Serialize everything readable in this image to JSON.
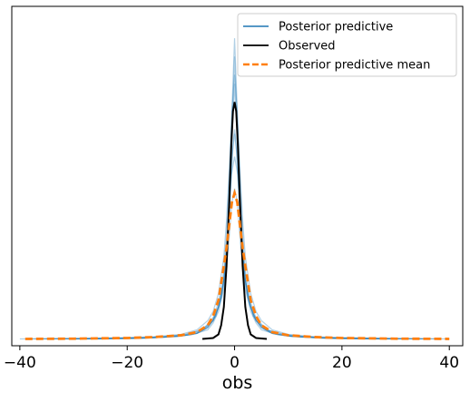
{
  "chart_data": {
    "type": "line",
    "title": "",
    "xlabel": "obs",
    "ylabel": "",
    "xlim": [
      -41.5,
      42.5
    ],
    "ylim": [
      -0.015,
      0.73
    ],
    "xticks": [
      -40,
      -20,
      0,
      20,
      40
    ],
    "xtick_labels": [
      "−40",
      "−20",
      "0",
      "20",
      "40"
    ],
    "y_axis_visible": false,
    "grid": false,
    "legend_position": "top-right",
    "colors": {
      "posterior_predictive": "#1f77b4",
      "observed": "#000000",
      "posterior_predictive_mean": "#ff7f0e"
    },
    "series": [
      {
        "name": "Posterior predictive",
        "kind": "ensemble_of_curves",
        "style": "solid",
        "curves": [
          {
            "x": [
              -40,
              -30,
              -20,
              -15,
              -10,
              -7,
              -5,
              -4,
              -3,
              -2,
              -1.5,
              -1,
              -0.5,
              0,
              0.5,
              1,
              1.5,
              2,
              3,
              4,
              5,
              7,
              10,
              15,
              20,
              30,
              40
            ],
            "y": [
              0,
              0.001,
              0.003,
              0.005,
              0.01,
              0.02,
              0.04,
              0.06,
              0.1,
              0.18,
              0.26,
              0.37,
              0.48,
              0.52,
              0.48,
              0.37,
              0.26,
              0.18,
              0.1,
              0.06,
              0.04,
              0.02,
              0.01,
              0.005,
              0.003,
              0.001,
              0
            ]
          },
          {
            "x": [
              -35,
              -25,
              -15,
              -10,
              -7,
              -5,
              -4,
              -3,
              -2,
              -1.5,
              -1,
              -0.5,
              0,
              0.5,
              1,
              1.5,
              2,
              3,
              4,
              5,
              7,
              10,
              15,
              25,
              35
            ],
            "y": [
              0,
              0.001,
              0.003,
              0.006,
              0.012,
              0.025,
              0.04,
              0.07,
              0.13,
              0.2,
              0.31,
              0.5,
              0.66,
              0.5,
              0.31,
              0.2,
              0.13,
              0.07,
              0.04,
              0.025,
              0.012,
              0.006,
              0.003,
              0.001,
              0
            ]
          },
          {
            "x": [
              -30,
              -20,
              -12,
              -8,
              -5,
              -4,
              -3,
              -2,
              -1.5,
              -1,
              -0.5,
              0,
              0.5,
              1,
              1.5,
              2,
              3,
              4,
              5,
              8,
              12,
              20,
              30
            ],
            "y": [
              0,
              0.001,
              0.004,
              0.009,
              0.02,
              0.035,
              0.06,
              0.11,
              0.17,
              0.27,
              0.4,
              0.45,
              0.4,
              0.27,
              0.17,
              0.11,
              0.06,
              0.035,
              0.02,
              0.009,
              0.004,
              0.001,
              0
            ]
          },
          {
            "x": [
              -32,
              -22,
              -14,
              -9,
              -6,
              -4,
              -3,
              -2,
              -1.5,
              -1,
              -0.5,
              0,
              0.5,
              1,
              1.5,
              2,
              3,
              4,
              6,
              9,
              14,
              22,
              32
            ],
            "y": [
              0,
              0.001,
              0.004,
              0.01,
              0.02,
              0.045,
              0.08,
              0.15,
              0.23,
              0.35,
              0.5,
              0.58,
              0.5,
              0.35,
              0.23,
              0.15,
              0.08,
              0.045,
              0.02,
              0.01,
              0.004,
              0.001,
              0
            ]
          },
          {
            "x": [
              -28,
              -18,
              -11,
              -7,
              -5,
              -3.5,
              -2.5,
              -1.8,
              -1.2,
              -0.6,
              0,
              0.6,
              1.2,
              1.8,
              2.5,
              3.5,
              5,
              7,
              11,
              18,
              28
            ],
            "y": [
              0,
              0.001,
              0.005,
              0.012,
              0.025,
              0.05,
              0.09,
              0.15,
              0.24,
              0.36,
              0.4,
              0.36,
              0.24,
              0.15,
              0.09,
              0.05,
              0.025,
              0.012,
              0.005,
              0.001,
              0
            ]
          },
          {
            "x": [
              -36,
              -24,
              -16,
              -10,
              -6,
              -4,
              -3,
              -2,
              -1.4,
              -0.8,
              -0.3,
              0,
              0.3,
              0.8,
              1.4,
              2,
              3,
              4,
              6,
              10,
              16,
              24,
              36
            ],
            "y": [
              0,
              0.001,
              0.003,
              0.008,
              0.02,
              0.04,
              0.07,
              0.13,
              0.21,
              0.35,
              0.52,
              0.62,
              0.52,
              0.35,
              0.21,
              0.13,
              0.07,
              0.04,
              0.02,
              0.008,
              0.003,
              0.001,
              0
            ]
          },
          {
            "x": [
              -26,
              -16,
              -10,
              -7,
              -5,
              -3.5,
              -2.5,
              -1.7,
              -1.1,
              -0.5,
              0,
              0.5,
              1.1,
              1.7,
              2.5,
              3.5,
              5,
              7,
              10,
              16,
              26
            ],
            "y": [
              0,
              0.002,
              0.006,
              0.013,
              0.03,
              0.055,
              0.09,
              0.14,
              0.21,
              0.3,
              0.33,
              0.3,
              0.21,
              0.14,
              0.09,
              0.055,
              0.03,
              0.013,
              0.006,
              0.002,
              0
            ]
          },
          {
            "x": [
              -38,
              -26,
              -16,
              -10,
              -7,
              -5,
              -3.5,
              -2.5,
              -1.6,
              -1,
              -0.4,
              0,
              0.4,
              1,
              1.6,
              2.5,
              3.5,
              5,
              7,
              10,
              16,
              26,
              38
            ],
            "y": [
              0,
              0.001,
              0.002,
              0.006,
              0.012,
              0.025,
              0.05,
              0.09,
              0.16,
              0.27,
              0.46,
              0.56,
              0.46,
              0.27,
              0.16,
              0.09,
              0.05,
              0.025,
              0.012,
              0.006,
              0.002,
              0.001,
              0
            ]
          },
          {
            "x": [
              -30,
              -20,
              -13,
              -8,
              -5.5,
              -4,
              -2.8,
              -2,
              -1.3,
              -0.7,
              -0.2,
              0,
              0.2,
              0.7,
              1.3,
              2,
              2.8,
              4,
              5.5,
              8,
              13,
              20,
              30
            ],
            "y": [
              0,
              0.001,
              0.004,
              0.01,
              0.022,
              0.04,
              0.075,
              0.13,
              0.22,
              0.34,
              0.44,
              0.46,
              0.44,
              0.34,
              0.22,
              0.13,
              0.075,
              0.04,
              0.022,
              0.01,
              0.004,
              0.001,
              0
            ]
          }
        ]
      },
      {
        "name": "Observed",
        "style": "solid",
        "x": [
          -6,
          -4,
          -3,
          -2.5,
          -2,
          -1.5,
          -1,
          -0.6,
          -0.3,
          0,
          0.3,
          0.6,
          1,
          1.5,
          2,
          2.5,
          3,
          4,
          6
        ],
        "y": [
          0,
          0.002,
          0.01,
          0.03,
          0.07,
          0.16,
          0.3,
          0.43,
          0.5,
          0.52,
          0.5,
          0.43,
          0.3,
          0.16,
          0.07,
          0.03,
          0.01,
          0.002,
          0
        ]
      },
      {
        "name": "Posterior predictive mean",
        "style": "dashed",
        "x": [
          -39,
          -30,
          -20,
          -15,
          -10,
          -7,
          -5,
          -4,
          -3,
          -2,
          -1.5,
          -1,
          -0.5,
          0,
          0.5,
          1,
          1.5,
          2,
          3,
          4,
          5,
          7,
          10,
          15,
          20,
          30,
          40
        ],
        "y": [
          0,
          0.0005,
          0.002,
          0.004,
          0.008,
          0.015,
          0.03,
          0.05,
          0.085,
          0.16,
          0.2,
          0.25,
          0.3,
          0.32,
          0.3,
          0.25,
          0.2,
          0.16,
          0.085,
          0.05,
          0.03,
          0.015,
          0.008,
          0.004,
          0.002,
          0.0005,
          0
        ]
      }
    ]
  }
}
